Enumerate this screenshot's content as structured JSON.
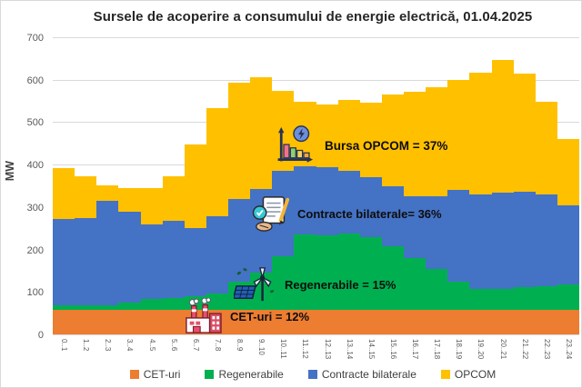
{
  "title": "Sursele de acoperire a consumului de energie electrică, 01.04.2025",
  "chart_data": {
    "type": "bar",
    "stacked": true,
    "title": "Sursele de acoperire a consumului de energie electrică, 01.04.2025",
    "ylabel": "MW",
    "xlabel": "",
    "ylim": [
      0,
      700
    ],
    "yticks": [
      0,
      100,
      200,
      300,
      400,
      500,
      600,
      700
    ],
    "grid": true,
    "legend_position": "bottom",
    "categories": [
      "0..1",
      "1..2",
      "2..3",
      "3..4",
      "4..5",
      "5..6",
      "6..7",
      "7..8",
      "8..9",
      "9..10",
      "10..11",
      "11..12",
      "12..13",
      "13..14",
      "14..15",
      "15..16",
      "16..17",
      "17..18",
      "18..19",
      "19..20",
      "20..21",
      "21..22",
      "22..23",
      "23..24"
    ],
    "series": [
      {
        "name": "CET-uri",
        "color": "#ED7D31",
        "values": [
          58,
          58,
          58,
          58,
          58,
          58,
          58,
          58,
          58,
          58,
          58,
          58,
          58,
          58,
          58,
          58,
          58,
          58,
          58,
          58,
          58,
          58,
          58,
          58
        ]
      },
      {
        "name": "Regenerabile",
        "color": "#00B050",
        "values": [
          10,
          10,
          10,
          17,
          25,
          27,
          32,
          38,
          67,
          87,
          127,
          178,
          176,
          179,
          172,
          150,
          122,
          96,
          66,
          50,
          50,
          53,
          56,
          59
        ]
      },
      {
        "name": "Contracte bilaterale",
        "color": "#4472C4",
        "values": [
          204,
          207,
          247,
          215,
          175,
          182,
          160,
          183,
          193,
          198,
          200,
          159,
          159,
          148,
          140,
          142,
          145,
          171,
          216,
          222,
          225,
          225,
          215,
          187
        ]
      },
      {
        "name": "OPCOM",
        "color": "#FFC000",
        "values": [
          120,
          98,
          37,
          55,
          87,
          105,
          197,
          254,
          276,
          262,
          188,
          154,
          149,
          167,
          176,
          215,
          247,
          257,
          260,
          286,
          314,
          278,
          218,
          157
        ]
      }
    ]
  },
  "annotations": [
    {
      "label": "Bursa OPCOM = 37%",
      "icon": "energy-market-icon"
    },
    {
      "label": "Contracte bilaterale= 36%",
      "icon": "contract-icon"
    },
    {
      "label": "Regenerabile = 15%",
      "icon": "renewables-icon"
    },
    {
      "label": "CET-uri = 12%",
      "icon": "factory-icon"
    }
  ],
  "colors": {
    "cet": "#ED7D31",
    "regenerabile": "#00B050",
    "contracte": "#4472C4",
    "opcom": "#FFC000",
    "gridline": "#D9D9D9",
    "axis_text": "#595959"
  }
}
